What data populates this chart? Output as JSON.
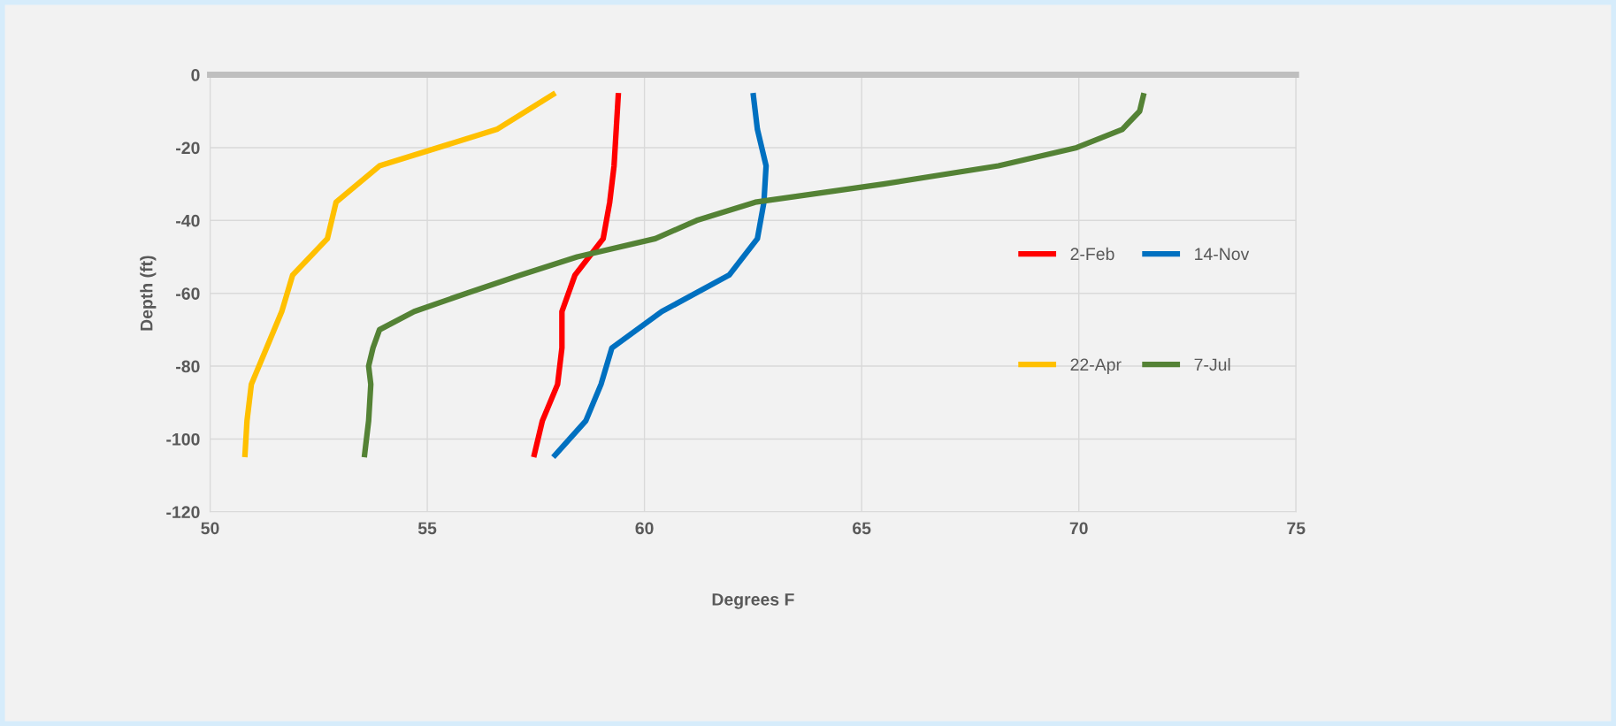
{
  "chart_data": {
    "type": "line",
    "xlabel": "Degrees F",
    "ylabel": "Depth (ft)",
    "xlim": [
      50,
      75
    ],
    "xticks": [
      50,
      55,
      60,
      65,
      70,
      75
    ],
    "ylim": [
      -120,
      0
    ],
    "yticks": [
      -120,
      -100,
      -80,
      -60,
      -40,
      -20,
      0
    ],
    "grid": true,
    "legend": "right",
    "marker": "none",
    "line_style": "solid",
    "series": [
      {
        "name": "2-Feb",
        "color": "#ff0000",
        "x": [
          59.4,
          59.35,
          59.3,
          59.2,
          59.05,
          58.4,
          58.1,
          58.1,
          58.0,
          57.65,
          57.45
        ],
        "values": [
          -5,
          -15,
          -25,
          -35,
          -45,
          -55,
          -65,
          -75,
          -85,
          -95,
          -105
        ]
      },
      {
        "name": "22-Apr",
        "color": "#ffc000",
        "x": [
          57.95,
          56.6,
          53.9,
          52.9,
          52.7,
          51.9,
          51.65,
          51.3,
          50.95,
          50.85,
          50.8
        ],
        "values": [
          -5,
          -15,
          -25,
          -35,
          -45,
          -55,
          -65,
          -75,
          -85,
          -95,
          -105
        ]
      },
      {
        "name": "14-Nov",
        "color": "#0070c0",
        "x": [
          62.5,
          62.6,
          62.8,
          62.75,
          62.6,
          61.95,
          60.4,
          59.25,
          59.0,
          58.65,
          57.9
        ],
        "values": [
          -5,
          -15,
          -25,
          -35,
          -45,
          -55,
          -65,
          -75,
          -85,
          -95,
          -105
        ]
      },
      {
        "name": "7-Jul",
        "color": "#548235",
        "x": [
          71.5,
          71.4,
          71.0,
          69.95,
          68.15,
          65.5,
          62.55,
          61.2,
          60.25,
          58.45,
          57.15,
          55.9,
          54.7,
          53.9,
          53.75,
          53.65,
          53.7,
          53.65,
          53.55
        ],
        "values": [
          -5,
          -10,
          -15,
          -20,
          -25,
          -30,
          -35,
          -40,
          -45,
          -50,
          -55,
          -60,
          -65,
          -70,
          -75,
          -80,
          -85,
          -95,
          -105
        ]
      }
    ]
  }
}
